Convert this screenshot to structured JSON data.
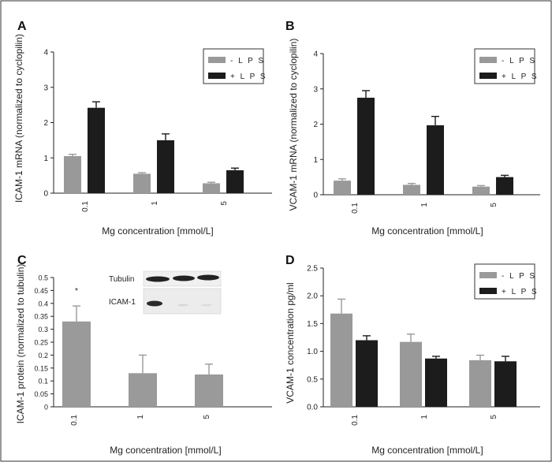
{
  "colors": {
    "minus_lps": "#999999",
    "plus_lps": "#1c1c1c",
    "bar_single": "#9a9a9a",
    "frame": "#333333"
  },
  "chart_data": [
    {
      "panel": "A",
      "type": "bar",
      "categories": [
        "0.1",
        "1",
        "5"
      ],
      "series": [
        {
          "name": "- L P S",
          "values": [
            1.05,
            0.55,
            0.28
          ],
          "errors": [
            0.05,
            0.03,
            0.03
          ]
        },
        {
          "name": "+ L P S",
          "values": [
            2.42,
            1.5,
            0.65
          ],
          "errors": [
            0.17,
            0.18,
            0.06
          ]
        }
      ],
      "ylim": [
        0,
        4
      ],
      "yticks": [
        "0",
        "1",
        "2",
        "3",
        "4"
      ],
      "xlabel": "Mg concentration [mmol/L]",
      "ylabel": "ICAM-1 mRNA (normalized to cyclopilin)",
      "legend": "top-right"
    },
    {
      "panel": "B",
      "type": "bar",
      "categories": [
        "0.1",
        "1",
        "5"
      ],
      "series": [
        {
          "name": "- L P S",
          "values": [
            0.4,
            0.28,
            0.23
          ],
          "errors": [
            0.05,
            0.04,
            0.03
          ]
        },
        {
          "name": "+ L P S",
          "values": [
            2.75,
            1.97,
            0.5
          ],
          "errors": [
            0.2,
            0.25,
            0.05
          ]
        }
      ],
      "ylim": [
        0,
        4
      ],
      "yticks": [
        "0",
        "1",
        "2",
        "3",
        "4"
      ],
      "xlabel": "Mg concentration [mmol/L]",
      "ylabel": "VCAM-1 mRNA (normalized to cyclopilin)",
      "legend": "top-right"
    },
    {
      "panel": "C",
      "type": "bar",
      "categories": [
        "0.1",
        "1",
        "5"
      ],
      "series": [
        {
          "values": [
            0.33,
            0.13,
            0.125
          ],
          "errors": [
            0.06,
            0.07,
            0.04
          ]
        }
      ],
      "ylim": [
        0,
        0.5
      ],
      "yticks": [
        "0",
        "0.05",
        "0.1",
        "0.15",
        "0.2",
        "0.25",
        "0.3",
        "0.35",
        "0.4",
        "0.45",
        "0.5"
      ],
      "xlabel": "Mg concentration [mmol/L]",
      "ylabel": "ICAM-1 protein (normalized to tubulin)",
      "annotations": [
        "*"
      ],
      "inset_labels": [
        "Tubulin",
        "ICAM-1"
      ]
    },
    {
      "panel": "D",
      "type": "bar",
      "categories": [
        "0.1",
        "1",
        "5"
      ],
      "series": [
        {
          "name": "- L P S",
          "values": [
            1.68,
            1.17,
            0.84
          ],
          "errors": [
            0.26,
            0.14,
            0.09
          ]
        },
        {
          "name": "+ L P S",
          "values": [
            1.2,
            0.87,
            0.82
          ],
          "errors": [
            0.08,
            0.04,
            0.09
          ]
        }
      ],
      "ylim": [
        0,
        2.5
      ],
      "yticks": [
        "0.0",
        "0.5",
        "1.0",
        "1.5",
        "2.0",
        "2.5"
      ],
      "xlabel": "Mg concentration [mmol/L]",
      "ylabel": "VCAM-1 concentration pg/ml",
      "legend": "top-right"
    }
  ]
}
